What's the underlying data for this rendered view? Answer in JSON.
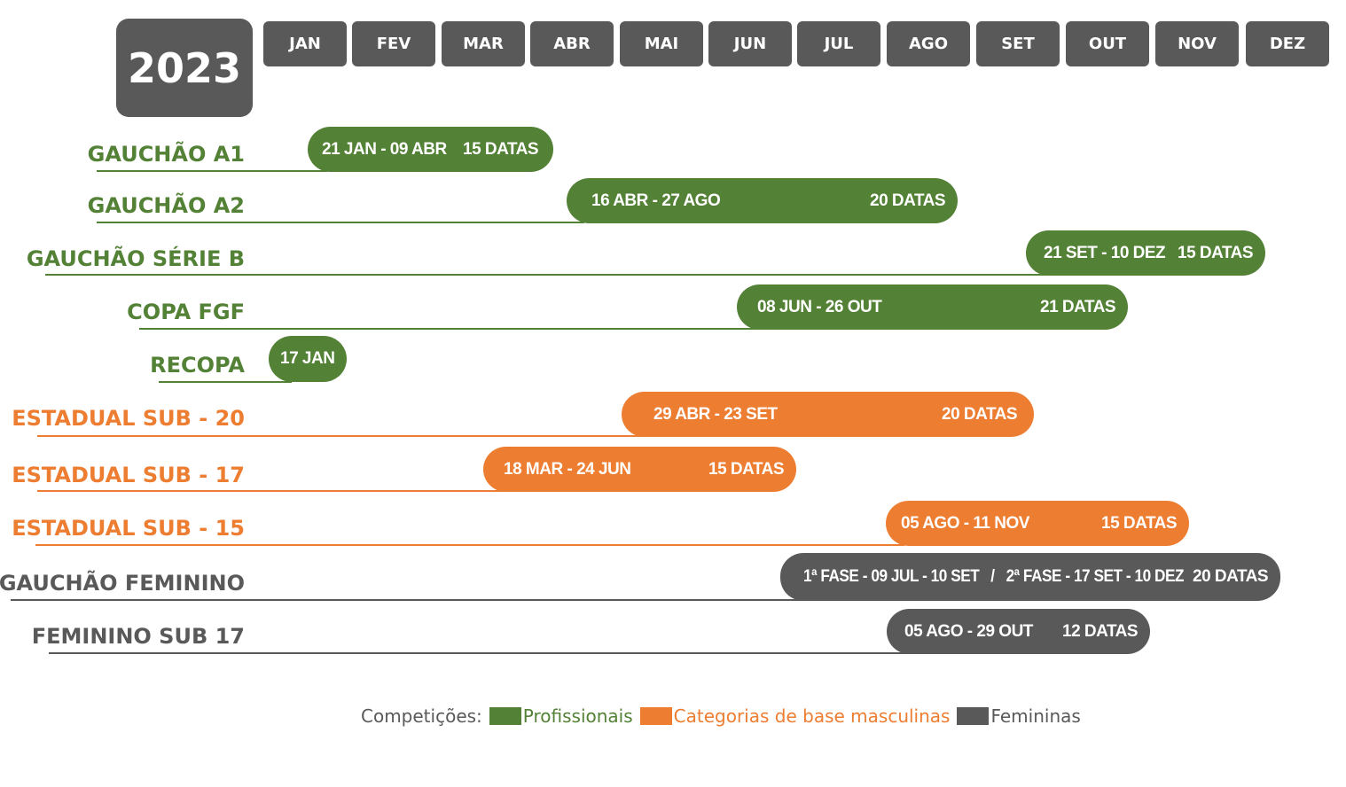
{
  "year": "2023",
  "months": [
    "JAN",
    "FEV",
    "MAR",
    "ABR",
    "MAI",
    "JUN",
    "JUL",
    "AGO",
    "SET",
    "OUT",
    "NOV",
    "DEZ"
  ],
  "competitions": [
    {
      "name": "GAUCHÃO A1",
      "period": "21 JAN - 09 ABR",
      "dates": "15 DATAS",
      "category": "profissionais"
    },
    {
      "name": "GAUCHÃO A2",
      "period": "16 ABR - 27 AGO",
      "dates": "20 DATAS",
      "category": "profissionais"
    },
    {
      "name": "GAUCHÃO SÉRIE B",
      "period": "21 SET - 10 DEZ",
      "dates": "15 DATAS",
      "category": "profissionais"
    },
    {
      "name": "COPA FGF",
      "period": "08 JUN - 26 OUT",
      "dates": "21 DATAS",
      "category": "profissionais"
    },
    {
      "name": "RECOPA",
      "period": "17 JAN",
      "dates": "",
      "category": "profissionais"
    },
    {
      "name": "ESTADUAL SUB - 20",
      "period": "29 ABR - 23 SET",
      "dates": "20 DATAS",
      "category": "base"
    },
    {
      "name": "ESTADUAL SUB - 17",
      "period": "18 MAR - 24 JUN",
      "dates": "15 DATAS",
      "category": "base"
    },
    {
      "name": "ESTADUAL SUB - 15",
      "period": "05 AGO - 11 NOV",
      "dates": "15 DATAS",
      "category": "base"
    },
    {
      "name": "GAUCHÃO FEMININO",
      "period": "1ª FASE - 09 JUL - 10 SET   /   2ª FASE - 17 SET - 10 DEZ",
      "dates": "20 DATAS",
      "category": "femininas"
    },
    {
      "name": "FEMININO SUB 17",
      "period": "05 AGO - 29 OUT",
      "dates": "12 DATAS",
      "category": "femininas"
    }
  ],
  "legend": {
    "title": "Competições:",
    "items": [
      {
        "label": "Profissionais",
        "color": "#538135"
      },
      {
        "label": "Categorias de base masculinas",
        "color": "#ED7D31"
      },
      {
        "label": "Femininas",
        "color": "#595959"
      }
    ]
  },
  "colors": {
    "profissionais": "#538135",
    "base": "#ED7D31",
    "femininas": "#595959"
  }
}
